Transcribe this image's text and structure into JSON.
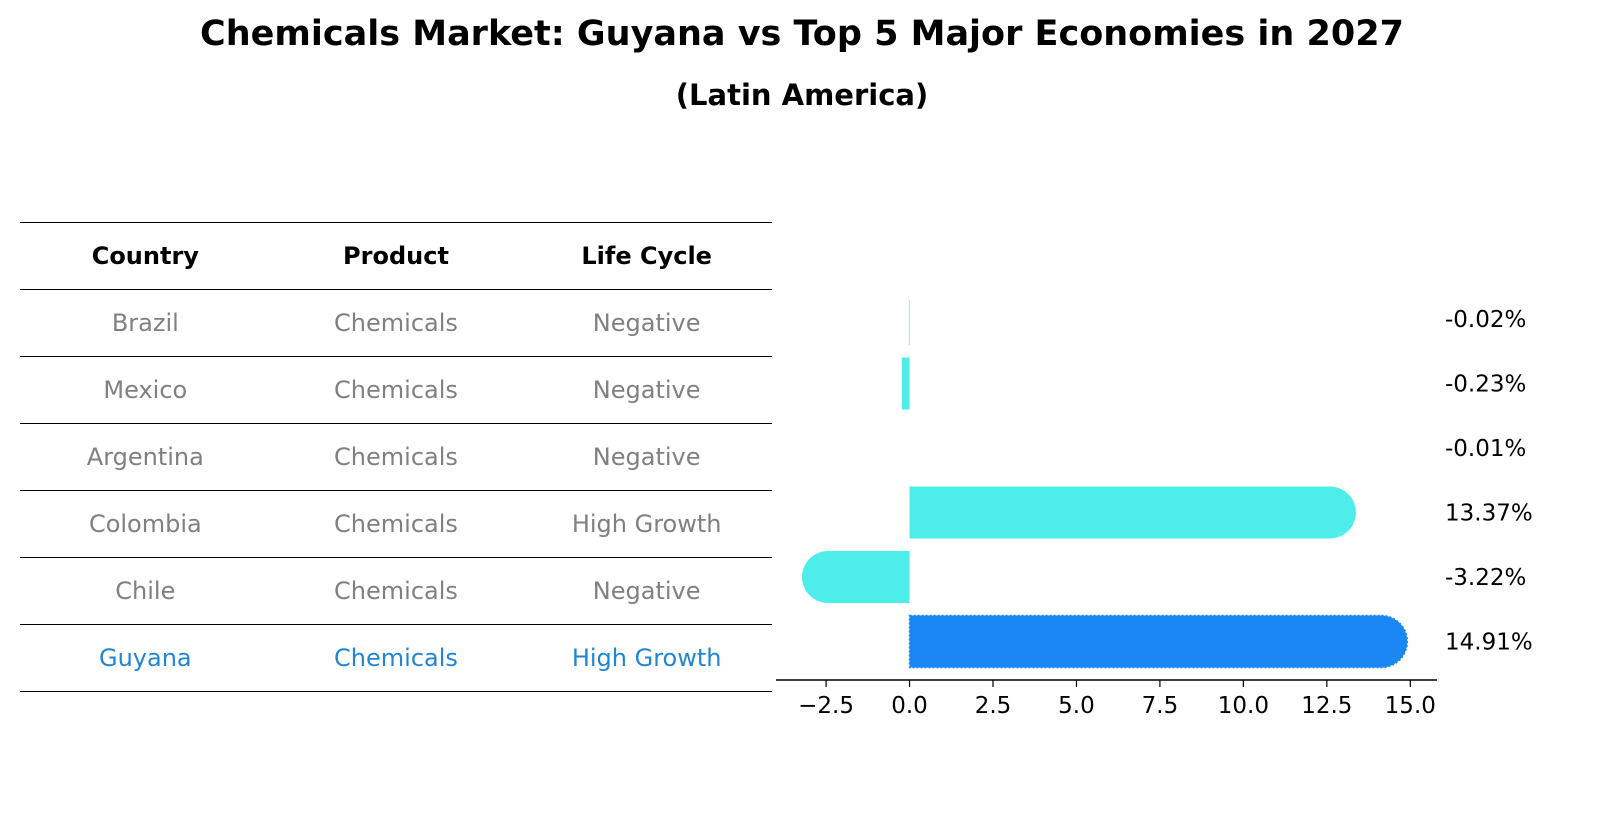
{
  "title": "Chemicals Market: Guyana vs Top 5 Major Economies in 2027",
  "subtitle": "(Latin America)",
  "table": {
    "headers": [
      "Country",
      "Product",
      "Life Cycle"
    ],
    "rows": [
      {
        "country": "Brazil",
        "product": "Chemicals",
        "life_cycle": "Negative"
      },
      {
        "country": "Mexico",
        "product": "Chemicals",
        "life_cycle": "Negative"
      },
      {
        "country": "Argentina",
        "product": "Chemicals",
        "life_cycle": "Negative"
      },
      {
        "country": "Colombia",
        "product": "Chemicals",
        "life_cycle": "High Growth"
      },
      {
        "country": "Chile",
        "product": "Chemicals",
        "life_cycle": "Negative"
      },
      {
        "country": "Guyana",
        "product": "Chemicals",
        "life_cycle": "High Growth"
      }
    ],
    "highlight_row": 5
  },
  "colors": {
    "bar": "#4dede9",
    "highlight_bar": "#1a87f5",
    "muted_text": "#808080",
    "highlight_text": "#1f86d6"
  },
  "chart_data": {
    "type": "bar",
    "orientation": "horizontal",
    "categories": [
      "Brazil",
      "Mexico",
      "Argentina",
      "Colombia",
      "Chile",
      "Guyana"
    ],
    "values": [
      -0.02,
      -0.23,
      -0.01,
      13.37,
      -3.22,
      14.91
    ],
    "value_labels": [
      "-0.02%",
      "-0.23%",
      "-0.01%",
      "13.37%",
      "-3.22%",
      "14.91%"
    ],
    "highlight_index": 5,
    "xlim": [
      -4.0,
      15.8
    ],
    "xticks": [
      -2.5,
      0.0,
      2.5,
      5.0,
      7.5,
      10.0,
      12.5,
      15.0
    ],
    "xtick_labels": [
      "−2.5",
      "0.0",
      "2.5",
      "5.0",
      "7.5",
      "10.0",
      "12.5",
      "15.0"
    ],
    "xlabel": "",
    "ylabel": "",
    "grid": false
  }
}
